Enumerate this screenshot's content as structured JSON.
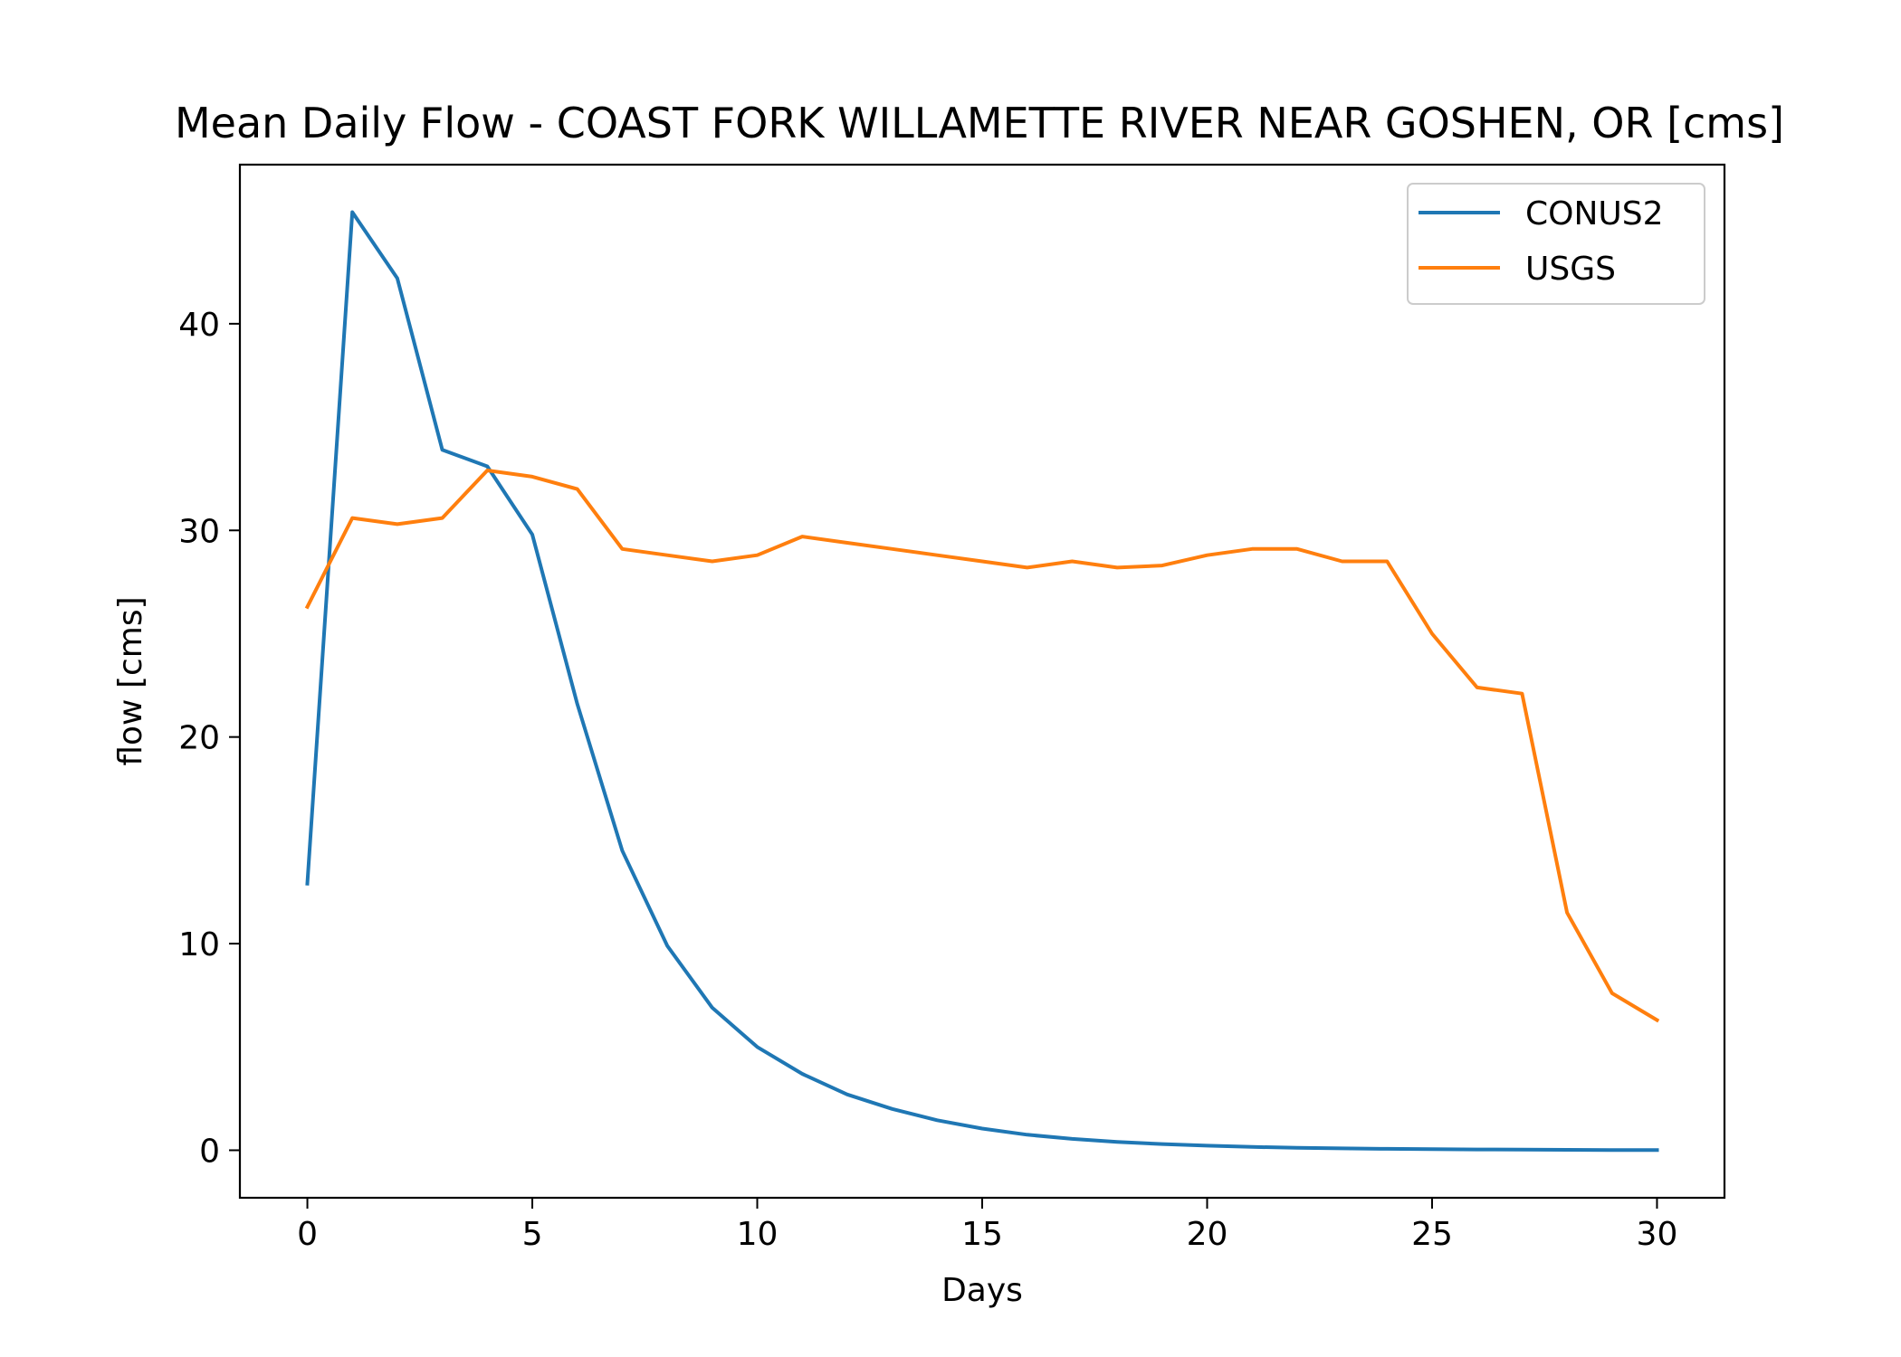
{
  "chart_data": {
    "type": "line",
    "title": "Mean Daily Flow - COAST FORK WILLAMETTE RIVER NEAR GOSHEN, OR [cms]",
    "xlabel": "Days",
    "ylabel": "flow [cms]",
    "xlim": [
      -1.5,
      31.5
    ],
    "ylim": [
      -2.3,
      47.7
    ],
    "xticks": [
      0,
      5,
      10,
      15,
      20,
      25,
      30
    ],
    "yticks": [
      0,
      10,
      20,
      30,
      40
    ],
    "grid": false,
    "legend_position": "top-right",
    "x": [
      0,
      1,
      2,
      3,
      4,
      5,
      6,
      7,
      8,
      9,
      10,
      11,
      12,
      13,
      14,
      15,
      16,
      17,
      18,
      19,
      20,
      21,
      22,
      23,
      24,
      25,
      26,
      27,
      28,
      29,
      30
    ],
    "series": [
      {
        "name": "CONUS2",
        "color": "#1f77b4",
        "values": [
          12.9,
          45.4,
          42.2,
          33.9,
          33.1,
          29.8,
          21.6,
          14.5,
          9.9,
          6.9,
          5.0,
          3.7,
          2.7,
          2.0,
          1.45,
          1.05,
          0.75,
          0.55,
          0.4,
          0.3,
          0.22,
          0.16,
          0.12,
          0.09,
          0.07,
          0.05,
          0.04,
          0.03,
          0.02,
          0.01,
          0.01
        ]
      },
      {
        "name": "USGS",
        "color": "#ff7f0e",
        "values": [
          26.3,
          30.6,
          30.3,
          30.6,
          32.9,
          32.6,
          32.0,
          29.1,
          28.8,
          28.5,
          28.8,
          29.7,
          29.4,
          29.1,
          28.8,
          28.5,
          28.2,
          28.5,
          28.2,
          28.3,
          28.8,
          29.1,
          29.1,
          28.5,
          28.5,
          25.0,
          22.4,
          22.1,
          11.5,
          7.6,
          6.3
        ]
      }
    ]
  }
}
